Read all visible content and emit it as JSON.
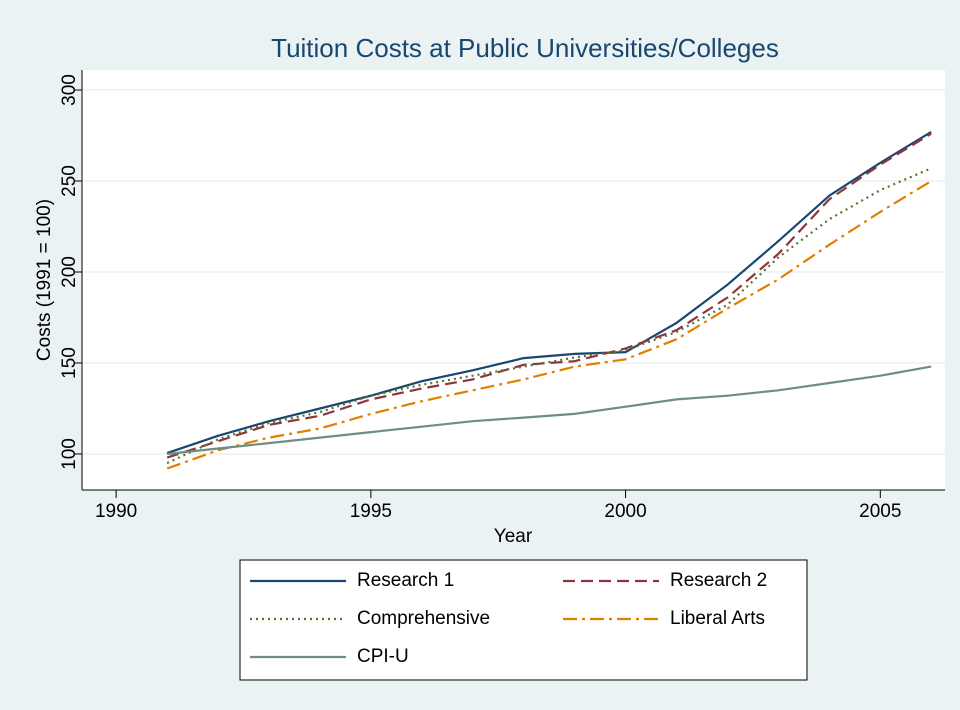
{
  "chart_data": {
    "type": "line",
    "title": "Tuition Costs at Public Universities/Colleges",
    "x_label": "Year",
    "y_label": "Costs (1991 = 100)",
    "x": [
      1991,
      1992,
      1993,
      1994,
      1995,
      1996,
      1997,
      1998,
      1999,
      2000,
      2001,
      2002,
      2003,
      2004,
      2005,
      2006
    ],
    "series": [
      {
        "name": "Research 1",
        "color": "#1a476f",
        "dash": "solid",
        "values": [
          100.5,
          110,
          118,
          125,
          132,
          140,
          146,
          152.7,
          155,
          156,
          172,
          193,
          217,
          242,
          260,
          277
        ]
      },
      {
        "name": "Research 2",
        "color": "#90353b",
        "dash": "dash",
        "values": [
          98,
          107,
          116,
          121,
          130,
          136,
          141,
          149,
          151,
          158,
          168,
          186,
          210,
          240,
          259,
          276
        ]
      },
      {
        "name": "Comprehensive",
        "color": "#55752f",
        "dash": "dot",
        "values": [
          95,
          108,
          117,
          123,
          132,
          138,
          143,
          148,
          153,
          157,
          167,
          182,
          208,
          229,
          245,
          257
        ]
      },
      {
        "name": "Liberal Arts",
        "color": "#e37e00",
        "dash": "dashdot",
        "values": [
          92,
          102,
          109,
          114,
          122,
          129,
          135,
          141,
          148,
          152,
          163,
          180,
          196,
          215,
          233,
          250
        ]
      },
      {
        "name": "CPI-U",
        "color": "#6e8e84",
        "dash": "solid",
        "values": [
          100,
          103,
          106,
          109,
          112,
          115,
          118,
          120,
          122,
          126,
          130,
          132,
          135,
          139,
          143,
          148
        ]
      }
    ],
    "xlim": [
      1989.33,
      2006.27
    ],
    "xticks": [
      1990,
      1995,
      2000,
      2005
    ],
    "ylim": [
      80.2,
      311
    ],
    "yticks": [
      100,
      150,
      200,
      250,
      300
    ],
    "grid": true,
    "legend": "bottom"
  }
}
